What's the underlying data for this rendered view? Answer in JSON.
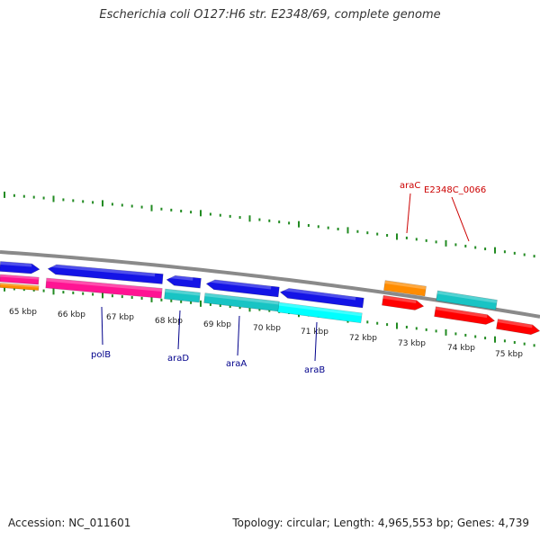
{
  "title": "Escherichia coli O127:H6 str. E2348/69, complete genome",
  "footer": {
    "accession": "Accession: NC_011601",
    "summary": "Topology: circular; Length: 4,965,553 bp; Genes: 4,739"
  },
  "colors": {
    "tick": "#228b22",
    "backbone": "#8a8a8a",
    "forward_cds": "#1414e6",
    "reverse_cds": "#ff1493",
    "cyan_cds": "#18c4c4",
    "light_cyan": "#00ffff",
    "orange": "#ff8c00",
    "red_cds": "#ff0000",
    "gene_label_blue": "#00008b",
    "gene_label_red": "#cc0000"
  },
  "kbp_labels": [
    "65 kbp",
    "66 kbp",
    "67 kbp",
    "68 kbp",
    "69 kbp",
    "70 kbp",
    "71 kbp",
    "72 kbp",
    "73 kbp",
    "74 kbp",
    "75 kbp"
  ],
  "gene_labels": [
    {
      "name": "polB",
      "color": "gene_label_blue"
    },
    {
      "name": "araD",
      "color": "gene_label_blue"
    },
    {
      "name": "araA",
      "color": "gene_label_blue"
    },
    {
      "name": "araB",
      "color": "gene_label_blue"
    },
    {
      "name": "araC",
      "color": "gene_label_red"
    },
    {
      "name": "E2348C_0066",
      "color": "gene_label_red"
    }
  ]
}
